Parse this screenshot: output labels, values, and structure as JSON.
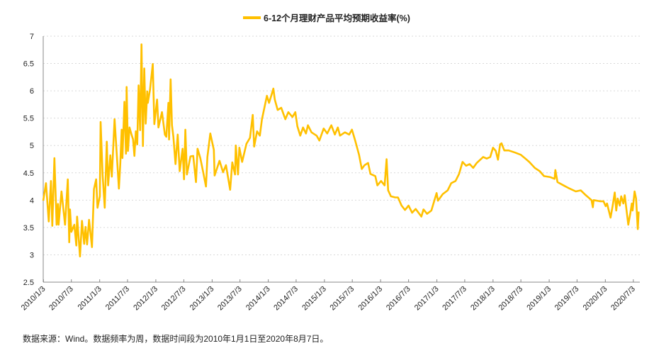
{
  "chart_data": {
    "type": "line",
    "title": "",
    "xlabel": "",
    "ylabel": "",
    "ylim": [
      2.5,
      7
    ],
    "yticks": [
      "7",
      "6.5",
      "6",
      "5.5",
      "5",
      "4.5",
      "4",
      "3.5",
      "3",
      "2.5"
    ],
    "xlim": [
      "2010-01-01",
      "2020-08-07"
    ],
    "xticks": [
      "2010/1/3",
      "2010/7/3",
      "2011/1/3",
      "2011/7/3",
      "2012/1/3",
      "2012/7/3",
      "2013/1/3",
      "2013/7/3",
      "2014/1/3",
      "2014/7/3",
      "2015/1/3",
      "2015/7/3",
      "2016/1/3",
      "2016/7/3",
      "2017/1/3",
      "2017/7/3",
      "2018/1/3",
      "2018/7/3",
      "2019/1/3",
      "2019/7/3",
      "2020/1/3",
      "2020/7/3"
    ],
    "grid": true,
    "legend_position": "top",
    "colors": {
      "series": "#FFC000",
      "grid": "#d9d9d9",
      "axis": "#888888"
    },
    "series": [
      {
        "name": "6-12个月理财产品平均预期收益率(%)",
        "points": [
          [
            "2010-01-01",
            3.99
          ],
          [
            "2010-01-19",
            4.31
          ],
          [
            "2010-02-06",
            3.61
          ],
          [
            "2010-02-20",
            4.35
          ],
          [
            "2010-03-01",
            3.53
          ],
          [
            "2010-03-15",
            4.77
          ],
          [
            "2010-03-29",
            3.55
          ],
          [
            "2010-04-07",
            3.93
          ],
          [
            "2010-04-11",
            3.55
          ],
          [
            "2010-04-30",
            4.16
          ],
          [
            "2010-05-23",
            3.55
          ],
          [
            "2010-06-10",
            4.38
          ],
          [
            "2010-06-19",
            3.23
          ],
          [
            "2010-06-24",
            3.83
          ],
          [
            "2010-07-03",
            3.42
          ],
          [
            "2010-07-22",
            3.55
          ],
          [
            "2010-08-04",
            3.17
          ],
          [
            "2010-08-09",
            3.7
          ],
          [
            "2010-08-28",
            2.97
          ],
          [
            "2010-09-10",
            3.62
          ],
          [
            "2010-09-24",
            3.2
          ],
          [
            "2010-10-03",
            3.51
          ],
          [
            "2010-10-13",
            3.19
          ],
          [
            "2010-10-26",
            3.64
          ],
          [
            "2010-11-14",
            3.14
          ],
          [
            "2010-11-27",
            4.2
          ],
          [
            "2010-12-11",
            4.38
          ],
          [
            "2010-12-20",
            3.86
          ],
          [
            "2011-01-04",
            4.07
          ],
          [
            "2011-01-09",
            5.43
          ],
          [
            "2011-01-22",
            4.46
          ],
          [
            "2011-02-05",
            3.86
          ],
          [
            "2011-02-18",
            5.07
          ],
          [
            "2011-02-27",
            4.27
          ],
          [
            "2011-03-13",
            4.82
          ],
          [
            "2011-03-23",
            4.43
          ],
          [
            "2011-04-10",
            5.48
          ],
          [
            "2011-05-08",
            4.21
          ],
          [
            "2011-05-17",
            4.68
          ],
          [
            "2011-05-26",
            5.29
          ],
          [
            "2011-05-31",
            4.77
          ],
          [
            "2011-06-13",
            5.8
          ],
          [
            "2011-06-23",
            4.85
          ],
          [
            "2011-06-27",
            6.07
          ],
          [
            "2011-07-06",
            4.9
          ],
          [
            "2011-07-16",
            5.33
          ],
          [
            "2011-07-29",
            5.2
          ],
          [
            "2011-08-08",
            5.11
          ],
          [
            "2011-08-17",
            4.81
          ],
          [
            "2011-08-26",
            5.26
          ],
          [
            "2011-09-04",
            5.02
          ],
          [
            "2011-09-13",
            6.1
          ],
          [
            "2011-09-23",
            5.28
          ],
          [
            "2011-10-02",
            6.85
          ],
          [
            "2011-10-11",
            4.99
          ],
          [
            "2011-10-20",
            6.41
          ],
          [
            "2011-10-29",
            5.4
          ],
          [
            "2011-11-08",
            5.99
          ],
          [
            "2011-11-12",
            5.78
          ],
          [
            "2011-11-26",
            6.02
          ],
          [
            "2011-12-14",
            6.49
          ],
          [
            "2011-12-24",
            5.39
          ],
          [
            "2012-01-11",
            5.84
          ],
          [
            "2012-01-20",
            5.33
          ],
          [
            "2012-02-12",
            5.61
          ],
          [
            "2012-03-02",
            5.2
          ],
          [
            "2012-03-11",
            5.16
          ],
          [
            "2012-03-25",
            5.78
          ],
          [
            "2012-03-29",
            5.11
          ],
          [
            "2012-04-08",
            6.21
          ],
          [
            "2012-04-17",
            5.37
          ],
          [
            "2012-04-26",
            5.16
          ],
          [
            "2012-05-10",
            4.66
          ],
          [
            "2012-05-24",
            5.2
          ],
          [
            "2012-06-06",
            4.53
          ],
          [
            "2012-06-25",
            4.94
          ],
          [
            "2012-07-04",
            4.38
          ],
          [
            "2012-07-13",
            5.29
          ],
          [
            "2012-07-23",
            4.47
          ],
          [
            "2012-08-15",
            4.8
          ],
          [
            "2012-09-02",
            4.81
          ],
          [
            "2012-09-20",
            4.33
          ],
          [
            "2012-09-30",
            4.94
          ],
          [
            "2012-10-18",
            4.77
          ],
          [
            "2012-11-06",
            4.51
          ],
          [
            "2012-11-24",
            4.25
          ],
          [
            "2012-12-03",
            4.79
          ],
          [
            "2012-12-22",
            5.22
          ],
          [
            "2013-01-14",
            4.92
          ],
          [
            "2013-01-19",
            4.45
          ],
          [
            "2013-02-20",
            4.72
          ],
          [
            "2013-03-15",
            4.51
          ],
          [
            "2013-04-03",
            4.64
          ],
          [
            "2013-04-30",
            4.19
          ],
          [
            "2013-05-14",
            4.69
          ],
          [
            "2013-06-01",
            4.47
          ],
          [
            "2013-06-06",
            5.0
          ],
          [
            "2013-06-20",
            4.47
          ],
          [
            "2013-06-29",
            4.96
          ],
          [
            "2013-07-17",
            4.7
          ],
          [
            "2013-08-14",
            5.03
          ],
          [
            "2013-09-06",
            5.14
          ],
          [
            "2013-09-24",
            5.56
          ],
          [
            "2013-10-03",
            4.98
          ],
          [
            "2013-10-22",
            5.26
          ],
          [
            "2013-11-09",
            5.18
          ],
          [
            "2013-11-23",
            5.48
          ],
          [
            "2013-12-07",
            5.67
          ],
          [
            "2013-12-25",
            5.91
          ],
          [
            "2014-01-08",
            5.78
          ],
          [
            "2014-01-22",
            5.91
          ],
          [
            "2014-02-05",
            6.04
          ],
          [
            "2014-02-14",
            5.84
          ],
          [
            "2014-03-05",
            5.65
          ],
          [
            "2014-03-28",
            5.69
          ],
          [
            "2014-04-24",
            5.48
          ],
          [
            "2014-05-13",
            5.61
          ],
          [
            "2014-06-09",
            5.52
          ],
          [
            "2014-06-28",
            5.61
          ],
          [
            "2014-07-11",
            5.35
          ],
          [
            "2014-07-30",
            5.18
          ],
          [
            "2014-08-17",
            5.33
          ],
          [
            "2014-09-05",
            5.22
          ],
          [
            "2014-09-18",
            5.37
          ],
          [
            "2014-10-11",
            5.24
          ],
          [
            "2014-11-13",
            5.18
          ],
          [
            "2014-12-01",
            5.09
          ],
          [
            "2014-12-29",
            5.31
          ],
          [
            "2015-01-21",
            5.22
          ],
          [
            "2015-02-17",
            5.37
          ],
          [
            "2015-03-12",
            5.2
          ],
          [
            "2015-03-31",
            5.33
          ],
          [
            "2015-04-14",
            5.18
          ],
          [
            "2015-05-16",
            5.24
          ],
          [
            "2015-06-13",
            5.2
          ],
          [
            "2015-07-01",
            5.29
          ],
          [
            "2015-07-24",
            5.07
          ],
          [
            "2015-08-16",
            4.83
          ],
          [
            "2015-09-03",
            4.57
          ],
          [
            "2015-09-21",
            4.64
          ],
          [
            "2015-10-14",
            4.68
          ],
          [
            "2015-10-29",
            4.48
          ],
          [
            "2015-11-30",
            4.44
          ],
          [
            "2015-12-13",
            4.27
          ],
          [
            "2016-01-06",
            4.35
          ],
          [
            "2016-01-29",
            4.27
          ],
          [
            "2016-02-11",
            4.75
          ],
          [
            "2016-02-21",
            4.18
          ],
          [
            "2016-03-10",
            4.07
          ],
          [
            "2016-04-07",
            4.05
          ],
          [
            "2016-04-25",
            4.05
          ],
          [
            "2016-05-18",
            3.9
          ],
          [
            "2016-06-10",
            3.82
          ],
          [
            "2016-07-03",
            3.9
          ],
          [
            "2016-07-26",
            3.77
          ],
          [
            "2016-08-18",
            3.84
          ],
          [
            "2016-09-24",
            3.7
          ],
          [
            "2016-10-08",
            3.83
          ],
          [
            "2016-10-31",
            3.75
          ],
          [
            "2016-11-28",
            3.81
          ],
          [
            "2017-01-01",
            4.13
          ],
          [
            "2017-01-10",
            3.99
          ],
          [
            "2017-02-10",
            4.11
          ],
          [
            "2017-03-14",
            4.18
          ],
          [
            "2017-04-06",
            4.31
          ],
          [
            "2017-05-04",
            4.35
          ],
          [
            "2017-05-27",
            4.48
          ],
          [
            "2017-06-19",
            4.7
          ],
          [
            "2017-07-12",
            4.63
          ],
          [
            "2017-08-04",
            4.66
          ],
          [
            "2017-08-27",
            4.59
          ],
          [
            "2017-09-19",
            4.68
          ],
          [
            "2017-10-31",
            4.79
          ],
          [
            "2017-11-23",
            4.76
          ],
          [
            "2017-12-16",
            4.79
          ],
          [
            "2018-01-03",
            4.96
          ],
          [
            "2018-01-21",
            4.9
          ],
          [
            "2018-02-04",
            4.74
          ],
          [
            "2018-02-18",
            5.02
          ],
          [
            "2018-02-27",
            5.04
          ],
          [
            "2018-03-17",
            4.91
          ],
          [
            "2018-04-14",
            4.91
          ],
          [
            "2018-05-26",
            4.87
          ],
          [
            "2018-07-02",
            4.83
          ],
          [
            "2018-07-24",
            4.78
          ],
          [
            "2018-08-26",
            4.7
          ],
          [
            "2018-10-01",
            4.59
          ],
          [
            "2018-11-03",
            4.53
          ],
          [
            "2018-11-30",
            4.44
          ],
          [
            "2019-01-11",
            4.42
          ],
          [
            "2019-02-07",
            4.39
          ],
          [
            "2019-02-12",
            4.55
          ],
          [
            "2019-02-26",
            4.33
          ],
          [
            "2019-04-13",
            4.26
          ],
          [
            "2019-05-10",
            4.22
          ],
          [
            "2019-06-25",
            4.16
          ],
          [
            "2019-07-27",
            4.18
          ],
          [
            "2019-08-29",
            4.09
          ],
          [
            "2019-10-05",
            4.0
          ],
          [
            "2019-10-14",
            3.87
          ],
          [
            "2019-10-19",
            4.0
          ],
          [
            "2019-11-29",
            3.98
          ],
          [
            "2019-12-22",
            3.98
          ],
          [
            "2020-01-05",
            3.89
          ],
          [
            "2020-01-14",
            3.94
          ],
          [
            "2020-02-06",
            3.68
          ],
          [
            "2020-02-20",
            3.9
          ],
          [
            "2020-03-04",
            4.14
          ],
          [
            "2020-03-14",
            3.81
          ],
          [
            "2020-03-23",
            4.03
          ],
          [
            "2020-04-06",
            3.9
          ],
          [
            "2020-04-15",
            4.07
          ],
          [
            "2020-04-29",
            3.94
          ],
          [
            "2020-05-08",
            4.09
          ],
          [
            "2020-05-31",
            3.55
          ],
          [
            "2020-06-14",
            3.77
          ],
          [
            "2020-06-23",
            3.94
          ],
          [
            "2020-06-28",
            3.81
          ],
          [
            "2020-07-11",
            4.16
          ],
          [
            "2020-07-21",
            4.03
          ],
          [
            "2020-08-01",
            3.47
          ],
          [
            "2020-08-07",
            3.79
          ]
        ]
      }
    ]
  },
  "legend": {
    "label": "6-12个月理财产品平均预期收益率(%)"
  },
  "note": "数据来源：Wind。数据频率为周，数据时间段为2010年1月1日至2020年8月7日。"
}
